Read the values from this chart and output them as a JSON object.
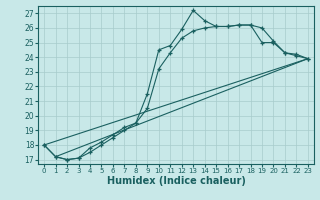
{
  "xlabel": "Humidex (Indice chaleur)",
  "background_color": "#c8e8e8",
  "grid_color": "#a8cccc",
  "line_color": "#1a6060",
  "xlim": [
    -0.5,
    23.5
  ],
  "ylim": [
    16.7,
    27.5
  ],
  "xticks": [
    0,
    1,
    2,
    3,
    4,
    5,
    6,
    7,
    8,
    9,
    10,
    11,
    12,
    13,
    14,
    15,
    16,
    17,
    18,
    19,
    20,
    21,
    22,
    23
  ],
  "yticks": [
    17,
    18,
    19,
    20,
    21,
    22,
    23,
    24,
    25,
    26,
    27
  ],
  "curve1_x": [
    0,
    1,
    2,
    3,
    4,
    5,
    6,
    7,
    8,
    9,
    10,
    11,
    12,
    13,
    14,
    15,
    16,
    17,
    18,
    19,
    20,
    21,
    22,
    23
  ],
  "curve1_y": [
    18.0,
    17.2,
    17.0,
    17.1,
    17.8,
    18.2,
    18.7,
    19.2,
    19.5,
    21.5,
    24.5,
    24.8,
    25.9,
    27.2,
    26.5,
    26.1,
    26.1,
    26.2,
    26.2,
    26.0,
    25.1,
    24.3,
    24.2,
    23.9
  ],
  "curve2_x": [
    0,
    1,
    2,
    3,
    4,
    5,
    6,
    7,
    8,
    9,
    10,
    11,
    12,
    13,
    14,
    15,
    16,
    17,
    18,
    19,
    20,
    21,
    22,
    23
  ],
  "curve2_y": [
    18.0,
    17.2,
    17.0,
    17.1,
    17.5,
    18.0,
    18.5,
    19.0,
    19.5,
    20.5,
    23.2,
    24.3,
    25.3,
    25.8,
    26.0,
    26.1,
    26.1,
    26.2,
    26.2,
    25.0,
    25.0,
    24.3,
    24.1,
    23.9
  ],
  "line1_x": [
    0,
    23
  ],
  "line1_y": [
    18.0,
    23.9
  ],
  "line2_x": [
    1,
    23
  ],
  "line2_y": [
    17.2,
    23.9
  ]
}
